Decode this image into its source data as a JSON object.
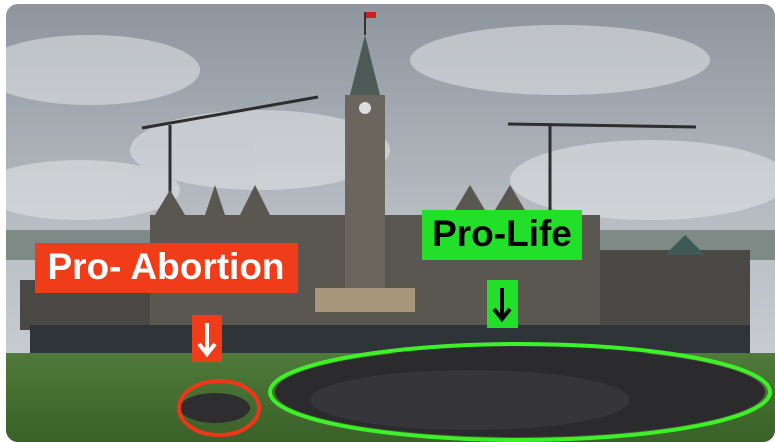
{
  "labels": {
    "left": "Pro- Abortion",
    "right": "Pro-Life"
  }
}
